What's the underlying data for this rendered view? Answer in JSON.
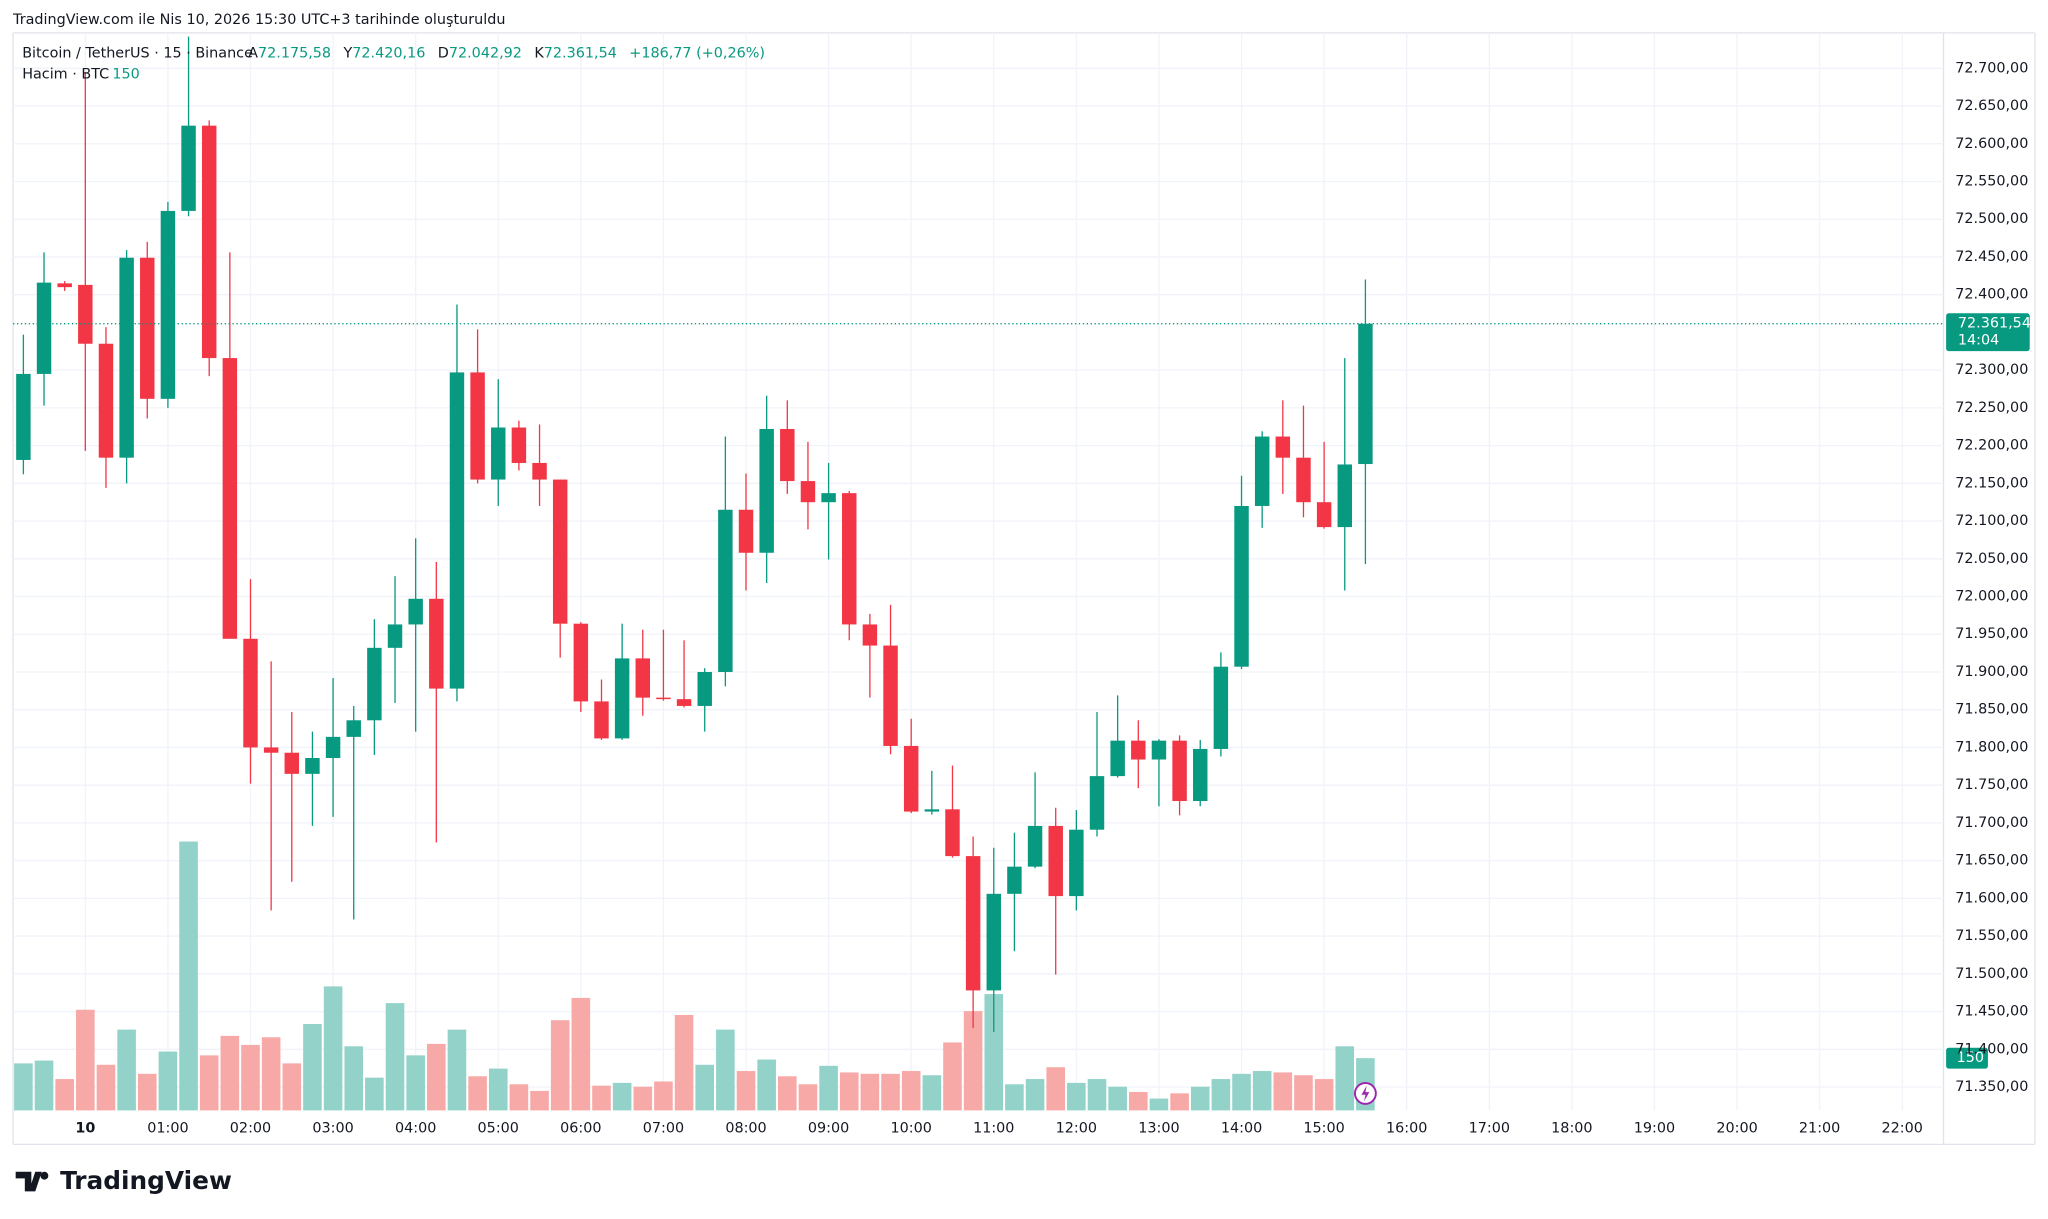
{
  "header": "TradingView.com ile Nis 10, 2026 15:30 UTC+3 tarihinde oluşturuldu",
  "chart_data": {
    "type": "candlestick",
    "legend": {
      "symbol": "Bitcoin / TetherUS · 15 · Binance",
      "open_label": "A",
      "open": "72.175,58",
      "high_label": "Y",
      "high": "72.420,16",
      "low_label": "D",
      "low": "72.042,92",
      "close_label": "K",
      "close": "72.361,54",
      "change": "+186,77 (+0,26%)",
      "volume_title": "Hacim · BTC",
      "volume": "150"
    },
    "price_tag": {
      "price": "72.361,54",
      "countdown": "14:04"
    },
    "volume_tag": "150",
    "up_color": "#089981",
    "down_color": "#f23645",
    "up_volume_color": "#92d2c9",
    "down_volume_color": "#f7a9a7",
    "open": [
      72181,
      72295,
      72415,
      72413,
      72335,
      72184,
      72449,
      72262,
      72511,
      72624,
      72316,
      71944,
      71800,
      71793,
      71765,
      71786,
      71814,
      71836,
      71932,
      71963,
      71997,
      71878,
      72297,
      72155,
      72224,
      72177,
      72155,
      71964,
      71861,
      71812,
      71918,
      71866,
      71864,
      71855,
      71900,
      72115,
      72058,
      72222,
      72153,
      72125,
      72137,
      71963,
      71935,
      71802,
      71715,
      71718,
      71656,
      71478,
      71606,
      71642,
      71696,
      71603,
      71691,
      71762,
      71809,
      71784,
      71809,
      71729,
      71798,
      71907,
      72120,
      72212,
      72184,
      72125,
      72092,
      72175.58
    ],
    "high": [
      72347,
      72456,
      72418,
      72695,
      72357,
      72459,
      72470,
      72523,
      72742,
      72631,
      72456,
      72023,
      71914,
      71847,
      71821,
      71892,
      71855,
      71970,
      72027,
      72077,
      72046,
      72387,
      72354,
      72288,
      72233,
      72228,
      72155,
      71966,
      71890,
      71964,
      71956,
      71956,
      71942,
      71905,
      72212,
      72163,
      72266,
      72260,
      72205,
      72177,
      72140,
      71977,
      71989,
      71838,
      71769,
      71776,
      71682,
      71667,
      71687,
      71767,
      71720,
      71717,
      71847,
      71869,
      71836,
      71811,
      71816,
      71810,
      71926,
      72160,
      72219,
      72260,
      72253,
      72205,
      72316,
      72420.16
    ],
    "low": [
      72162,
      72253,
      72405,
      72193,
      72144,
      72150,
      72236,
      72250,
      72504,
      72292,
      71944,
      71752,
      71584,
      71622,
      71696,
      71708,
      71572,
      71790,
      71859,
      71821,
      71674,
      71861,
      72150,
      72120,
      72167,
      72120,
      71919,
      71847,
      71810,
      71810,
      71842,
      71862,
      71853,
      71821,
      71881,
      72008,
      72018,
      72136,
      72089,
      72049,
      71942,
      71866,
      71791,
      71713,
      71711,
      71654,
      71428,
      71423,
      71530,
      71640,
      71499,
      71584,
      71682,
      71760,
      71746,
      71722,
      71710,
      71722,
      71788,
      71904,
      72091,
      72136,
      72105,
      72090,
      72008,
      72042.92
    ],
    "close": [
      72295,
      72416,
      72410,
      72335,
      72184,
      72449,
      72262,
      72511,
      72624,
      72316,
      71944,
      71800,
      71793,
      71765,
      71786,
      71814,
      71836,
      71932,
      71963,
      71997,
      71878,
      72297,
      72155,
      72224,
      72177,
      72155,
      71964,
      71861,
      71812,
      71918,
      71866,
      71864,
      71855,
      71900,
      72115,
      72058,
      72222,
      72153,
      72125,
      72137,
      71963,
      71935,
      71802,
      71715,
      71718,
      71656,
      71478,
      71606,
      71642,
      71696,
      71603,
      71691,
      71762,
      71809,
      71784,
      71809,
      71729,
      71798,
      71907,
      72120,
      72212,
      72184,
      72125,
      72092,
      72175,
      72361.54
    ],
    "volume": [
      135,
      143,
      90,
      289,
      131,
      232,
      105,
      169,
      772,
      158,
      214,
      188,
      210,
      135,
      248,
      356,
      184,
      94,
      308,
      158,
      191,
      232,
      98,
      120,
      75,
      56,
      259,
      323,
      71,
      79,
      68,
      83,
      274,
      131,
      232,
      113,
      146,
      98,
      75,
      128,
      109,
      105,
      105,
      113,
      101,
      195,
      285,
      334,
      75,
      90,
      124,
      79,
      90,
      68,
      53,
      34,
      49,
      68,
      90,
      105,
      113,
      109,
      101,
      90,
      184,
      150
    ],
    "ylim": [
      71319,
      72747
    ],
    "volume_lim": [
      0,
      3094
    ],
    "xlim": [
      -0.5,
      93
    ],
    "yticks": [
      {
        "value": 72700,
        "label": "72.700,00"
      },
      {
        "value": 72650,
        "label": "72.650,00"
      },
      {
        "value": 72600,
        "label": "72.600,00"
      },
      {
        "value": 72550,
        "label": "72.550,00"
      },
      {
        "value": 72500,
        "label": "72.500,00"
      },
      {
        "value": 72450,
        "label": "72.450,00"
      },
      {
        "value": 72400,
        "label": "72.400,00"
      },
      {
        "value": 72300,
        "label": "72.300,00"
      },
      {
        "value": 72250,
        "label": "72.250,00"
      },
      {
        "value": 72200,
        "label": "72.200,00"
      },
      {
        "value": 72150,
        "label": "72.150,00"
      },
      {
        "value": 72100,
        "label": "72.100,00"
      },
      {
        "value": 72050,
        "label": "72.050,00"
      },
      {
        "value": 72000,
        "label": "72.000,00"
      },
      {
        "value": 71950,
        "label": "71.950,00"
      },
      {
        "value": 71900,
        "label": "71.900,00"
      },
      {
        "value": 71850,
        "label": "71.850,00"
      },
      {
        "value": 71800,
        "label": "71.800,00"
      },
      {
        "value": 71750,
        "label": "71.750,00"
      },
      {
        "value": 71700,
        "label": "71.700,00"
      },
      {
        "value": 71650,
        "label": "71.650,00"
      },
      {
        "value": 71600,
        "label": "71.600,00"
      },
      {
        "value": 71550,
        "label": "71.550,00"
      },
      {
        "value": 71500,
        "label": "71.500,00"
      },
      {
        "value": 71450,
        "label": "71.450,00"
      },
      {
        "value": 71400,
        "label": "71.400,00"
      },
      {
        "value": 71350,
        "label": "71.350,00"
      }
    ],
    "xticks": [
      {
        "value": 3,
        "label": "10"
      },
      {
        "value": 7,
        "label": "01:00"
      },
      {
        "value": 11,
        "label": "02:00"
      },
      {
        "value": 15,
        "label": "03:00"
      },
      {
        "value": 19,
        "label": "04:00"
      },
      {
        "value": 23,
        "label": "05:00"
      },
      {
        "value": 27,
        "label": "06:00"
      },
      {
        "value": 31,
        "label": "07:00"
      },
      {
        "value": 35,
        "label": "08:00"
      },
      {
        "value": 39,
        "label": "09:00"
      },
      {
        "value": 43,
        "label": "10:00"
      },
      {
        "value": 47,
        "label": "11:00"
      },
      {
        "value": 51,
        "label": "12:00"
      },
      {
        "value": 55,
        "label": "13:00"
      },
      {
        "value": 59,
        "label": "14:00"
      },
      {
        "value": 63,
        "label": "15:00"
      },
      {
        "value": 67,
        "label": "16:00"
      },
      {
        "value": 71,
        "label": "17:00"
      },
      {
        "value": 75,
        "label": "18:00"
      },
      {
        "value": 79,
        "label": "19:00"
      },
      {
        "value": 83,
        "label": "20:00"
      },
      {
        "value": 87,
        "label": "21:00"
      },
      {
        "value": 91,
        "label": "22:00"
      }
    ],
    "grid": true
  },
  "footer": {
    "logo": "TradingView"
  }
}
